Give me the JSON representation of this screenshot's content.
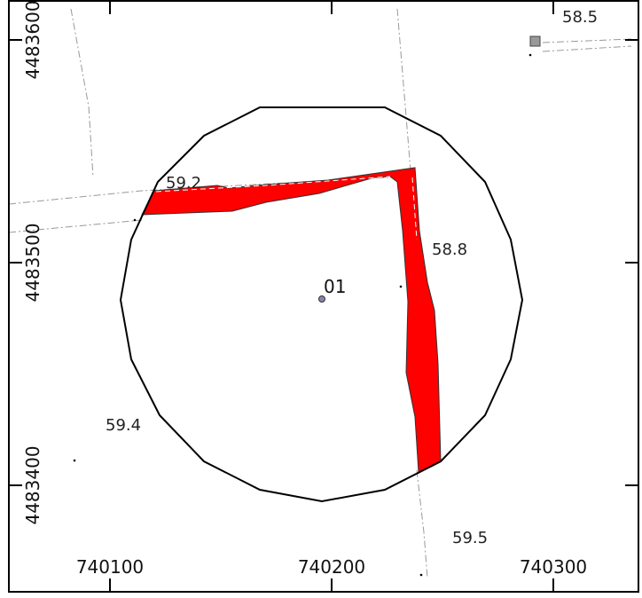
{
  "axes": {
    "x_ticks": [
      "740100",
      "740200",
      "740300"
    ],
    "y_ticks": [
      "4483600",
      "4483500",
      "4483400"
    ]
  },
  "labels": {
    "point_id": "01",
    "elev_58_5": "58.5",
    "elev_59_2": "59.2",
    "elev_58_8": "58.8",
    "elev_59_4": "59.4",
    "elev_59_5": "59.5"
  },
  "colors": {
    "highlight": "#ff0000",
    "buffer_outline": "#000000",
    "parcel_lines": "#999999",
    "point_fill": "#8c84a8"
  }
}
